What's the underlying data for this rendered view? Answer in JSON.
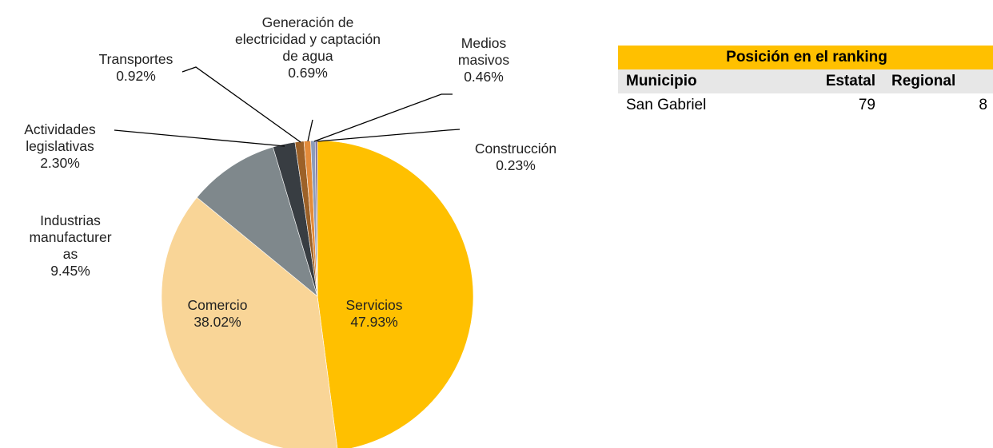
{
  "chart_data": {
    "type": "pie",
    "categories": [
      "Servicios",
      "Comercio",
      "Industrias manufactureras",
      "Actividades legislativas",
      "Transportes",
      "Generación de electricidad y captación de agua",
      "Medios masivos",
      "Construcción"
    ],
    "values": [
      47.93,
      38.02,
      9.45,
      2.3,
      0.92,
      0.69,
      0.46,
      0.23
    ],
    "value_labels": [
      "47.93%",
      "38.02%",
      "9.45%",
      "2.30%",
      "0.92%",
      "0.69%",
      "0.46%",
      "0.23%"
    ],
    "colors": [
      "#ffc000",
      "#f9d597",
      "#7f888c",
      "#383d42",
      "#9c6128",
      "#e38b3a",
      "#8d9cb8",
      "#7a6a9a"
    ]
  },
  "table": {
    "title": "Posición en el ranking",
    "header": [
      "Municipio",
      "Estatal",
      "Regional"
    ],
    "rows": [
      [
        "San Gabriel",
        "79",
        "8"
      ]
    ]
  }
}
